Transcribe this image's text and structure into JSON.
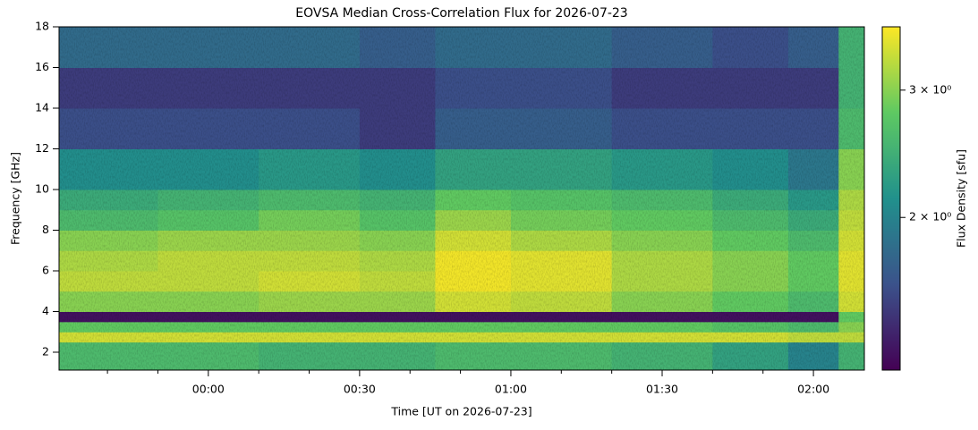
{
  "chart_data": {
    "type": "heatmap",
    "title": "EOVSA Median Cross-Correlation Flux for 2026-07-23",
    "xlabel": "Time [UT on 2026-07-23]",
    "ylabel": "Frequency [GHz]",
    "colorbar_label": "Flux Density [sfu]",
    "colormap": "viridis",
    "color_scale": "log",
    "clim": [
      1.23,
      3.67
    ],
    "cticks": [
      {
        "value": 2,
        "label": "2 × 10⁰"
      },
      {
        "value": 3,
        "label": "3 × 10⁰"
      }
    ],
    "xlim": [
      -29.6,
      130.1
    ],
    "xticks": [
      {
        "value": 0,
        "label": "00:00"
      },
      {
        "value": 30,
        "label": "00:30"
      },
      {
        "value": 60,
        "label": "01:00"
      },
      {
        "value": 90,
        "label": "01:30"
      },
      {
        "value": 120,
        "label": "02:00"
      }
    ],
    "xminorticks": [
      -20,
      -10,
      10,
      20,
      40,
      50,
      70,
      80,
      100,
      110
    ],
    "ylim": [
      1.12,
      18
    ],
    "yticks": [
      2,
      4,
      6,
      8,
      10,
      12,
      14,
      16,
      18
    ],
    "x_edges": [
      -29.6,
      -10,
      10,
      30,
      45,
      60,
      80,
      100,
      115,
      125,
      130.1
    ],
    "y_edges": [
      1.12,
      2.5,
      3.0,
      3.5,
      4.0,
      5,
      6,
      7,
      8,
      9,
      10,
      12,
      14,
      16,
      18
    ],
    "values": [
      [
        2.6,
        2.6,
        2.5,
        2.5,
        2.6,
        2.6,
        2.5,
        2.3,
        2.0,
        2.5
      ],
      [
        3.4,
        3.4,
        3.4,
        3.4,
        3.4,
        3.4,
        3.4,
        3.4,
        3.3,
        3.3
      ],
      [
        2.8,
        2.8,
        2.8,
        2.8,
        2.8,
        2.8,
        2.8,
        2.7,
        2.6,
        3.0
      ],
      [
        1.3,
        1.3,
        1.3,
        1.3,
        1.3,
        1.3,
        1.3,
        1.3,
        1.3,
        2.8
      ],
      [
        3.0,
        3.0,
        3.1,
        3.1,
        3.4,
        3.3,
        3.0,
        2.8,
        2.6,
        3.4
      ],
      [
        3.3,
        3.3,
        3.4,
        3.3,
        3.6,
        3.5,
        3.2,
        3.0,
        2.8,
        3.5
      ],
      [
        3.2,
        3.3,
        3.3,
        3.2,
        3.6,
        3.5,
        3.2,
        3.0,
        2.8,
        3.5
      ],
      [
        3.0,
        3.1,
        3.1,
        3.0,
        3.4,
        3.2,
        3.0,
        2.8,
        2.6,
        3.4
      ],
      [
        2.6,
        2.7,
        2.9,
        2.7,
        3.1,
        2.9,
        2.8,
        2.6,
        2.4,
        3.3
      ],
      [
        2.4,
        2.5,
        2.6,
        2.5,
        2.8,
        2.7,
        2.6,
        2.4,
        2.2,
        3.2
      ],
      [
        2.1,
        2.1,
        2.2,
        2.1,
        2.3,
        2.3,
        2.2,
        2.1,
        1.9,
        3.0
      ],
      [
        1.6,
        1.6,
        1.6,
        1.5,
        1.7,
        1.7,
        1.6,
        1.6,
        1.6,
        2.6
      ],
      [
        1.5,
        1.5,
        1.5,
        1.5,
        1.6,
        1.6,
        1.5,
        1.5,
        1.5,
        2.5
      ],
      [
        1.8,
        1.8,
        1.8,
        1.7,
        1.8,
        1.8,
        1.7,
        1.6,
        1.7,
        2.5
      ]
    ]
  }
}
